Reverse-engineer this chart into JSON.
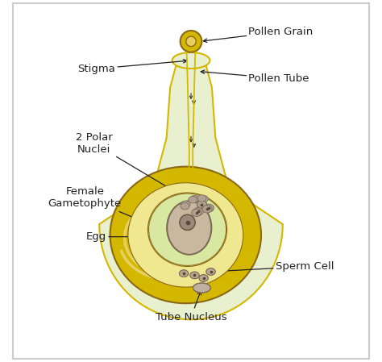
{
  "title": "",
  "bg_color": "#ffffff",
  "border_color": "#cccccc",
  "style_color": "#e8f0d0",
  "stigma_color": "#c8d870",
  "tube_color": "#d4b800",
  "tube_inner_color": "#e8d060",
  "ovule_outer_color": "#d4b800",
  "ovule_inner_color": "#f0e890",
  "female_gametophyte_color": "#d8e8a0",
  "egg_color": "#c8b8a0",
  "egg_fill": "#c8b8a0",
  "sperm_color": "#b8a890",
  "polar_nuclei_color": "#a89880",
  "arrow_color": "#333333",
  "label_color": "#222222",
  "labels": {
    "pollen_grain": "Pollen Grain",
    "stigma": "Stigma",
    "pollen_tube": "Pollen Tube",
    "polar_nuclei": "2 Polar\nNuclei",
    "female_gametophyte": "Female\nGametophyte",
    "egg": "Egg",
    "sperm_cell": "Sperm Cell",
    "tube_nucleus": "Tube Nucleus"
  }
}
